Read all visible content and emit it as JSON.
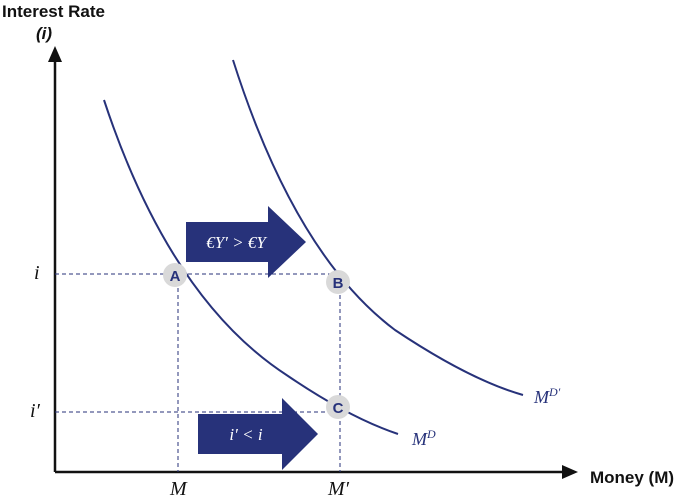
{
  "y_axis": {
    "title": "Interest Rate",
    "subtitle": "(i)"
  },
  "x_axis": {
    "title": "Money (M)"
  },
  "ticks": {
    "y": [
      {
        "id": "i",
        "label": "i"
      },
      {
        "id": "i_prime",
        "label": "i′"
      }
    ],
    "x": [
      {
        "id": "M",
        "label": "M"
      },
      {
        "id": "M_prime",
        "label": "M′"
      }
    ]
  },
  "curves": [
    {
      "id": "MD",
      "base": "M",
      "sup": "D"
    },
    {
      "id": "MD_prime",
      "base": "M",
      "sup": "D′"
    }
  ],
  "points": [
    {
      "id": "A",
      "label": "A"
    },
    {
      "id": "B",
      "label": "B"
    },
    {
      "id": "C",
      "label": "C"
    }
  ],
  "arrows": [
    {
      "id": "income",
      "label": "€Y′ > €Y"
    },
    {
      "id": "rate",
      "label": "i′ < i"
    }
  ],
  "colors": {
    "curve": "#27327a",
    "point": "#d9d9d9",
    "arrow": "#27327a",
    "axis": "#111111",
    "guide": "#27327a"
  }
}
